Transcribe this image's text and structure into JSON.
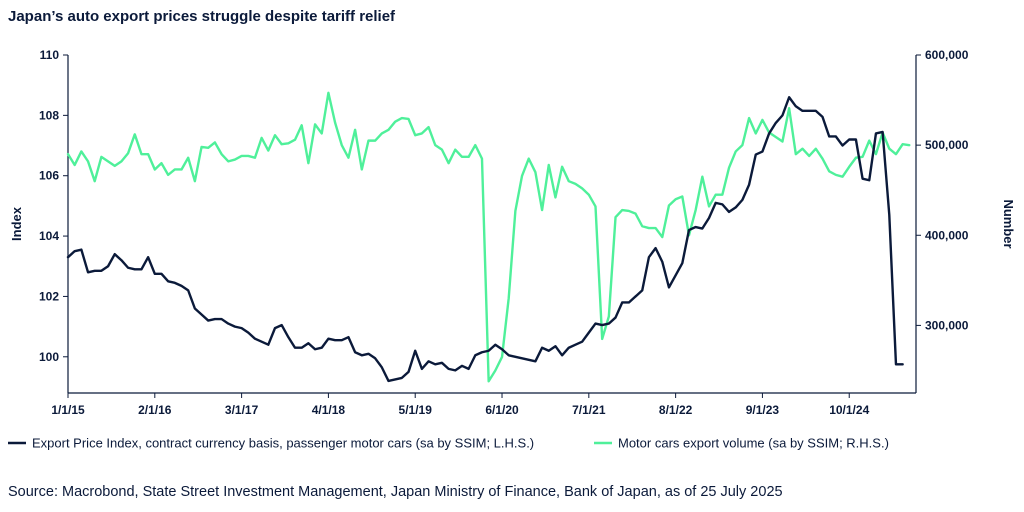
{
  "title": "Japan’s auto export prices struggle despite tariff relief",
  "source": "Source: Macrobond, State Street Investment Management, Japan Ministry of Finance, Bank of Japan, as of 25 July 2025",
  "colors": {
    "navy": "#0b1a3a",
    "green": "#4ff09a",
    "axis": "#0b1a3a"
  },
  "chart_data": {
    "type": "line",
    "x_tick_labels": [
      "1/1/15",
      "2/1/16",
      "3/1/17",
      "4/1/18",
      "5/1/19",
      "6/1/20",
      "7/1/21",
      "8/1/22",
      "9/1/23",
      "10/1/24"
    ],
    "x_tick_months": [
      0,
      13,
      26,
      39,
      52,
      65,
      78,
      91,
      104,
      117
    ],
    "x_range_months": [
      0,
      127
    ],
    "ylabel": "Index",
    "y2label": "Number",
    "ylim": [
      98.8,
      110
    ],
    "y_ticks": [
      100,
      102,
      104,
      106,
      108,
      110
    ],
    "y_tick_labels": [
      "100",
      "102",
      "104",
      "106",
      "108",
      "110"
    ],
    "y2lim": [
      225000,
      600000
    ],
    "y2_ticks": [
      300000,
      400000,
      500000,
      600000
    ],
    "y2_tick_labels": [
      "300,000",
      "400,000",
      "500,000",
      "600,000"
    ],
    "legend": [
      "Export Price Index, contract currency basis, passenger motor cars (sa by SSIM; L.H.S.)",
      "Motor cars export volume (sa by SSIM; R.H.S.)"
    ],
    "series": [
      {
        "name": "Export Price Index, contract currency basis, passenger motor cars (sa by SSIM; L.H.S.)",
        "axis": "left",
        "color": "#0b1a3a",
        "values": [
          103.3,
          103.5,
          103.55,
          102.8,
          102.85,
          102.85,
          103.0,
          103.4,
          103.2,
          102.95,
          102.9,
          102.9,
          103.3,
          102.75,
          102.75,
          102.5,
          102.45,
          102.35,
          102.2,
          101.6,
          101.4,
          101.2,
          101.25,
          101.25,
          101.1,
          101.0,
          100.95,
          100.8,
          100.6,
          100.5,
          100.4,
          100.95,
          101.05,
          100.65,
          100.3,
          100.3,
          100.45,
          100.25,
          100.3,
          100.6,
          100.55,
          100.55,
          100.65,
          100.15,
          100.05,
          100.1,
          99.95,
          99.65,
          99.2,
          99.25,
          99.3,
          99.5,
          100.2,
          99.6,
          99.85,
          99.75,
          99.8,
          99.6,
          99.55,
          99.7,
          99.6,
          100.05,
          100.15,
          100.2,
          100.4,
          100.25,
          100.05,
          100.0,
          99.95,
          99.9,
          99.85,
          100.3,
          100.2,
          100.35,
          100.05,
          100.3,
          100.4,
          100.5,
          100.8,
          101.1,
          101.05,
          101.1,
          101.3,
          101.8,
          101.8,
          102.0,
          102.2,
          103.3,
          103.6,
          103.15,
          102.3,
          102.7,
          103.1,
          104.2,
          104.3,
          104.25,
          104.6,
          105.1,
          105.05,
          104.8,
          104.95,
          105.2,
          105.7,
          106.7,
          106.8,
          107.4,
          107.75,
          108.0,
          108.6,
          108.3,
          108.15,
          108.15,
          108.15,
          107.95,
          107.3,
          107.3,
          107.0,
          107.2,
          107.2,
          105.9,
          105.85,
          107.4,
          107.45,
          104.7,
          99.75,
          99.75
        ]
      },
      {
        "name": "Motor cars export volume (sa by SSIM; R.H.S.)",
        "axis": "right",
        "color": "#4ff09a",
        "values": [
          490000,
          478000,
          493000,
          482000,
          460000,
          487000,
          482000,
          477000,
          482000,
          491000,
          512000,
          490000,
          490000,
          473000,
          480000,
          467000,
          473000,
          473000,
          486000,
          460000,
          498000,
          497000,
          503000,
          490000,
          482000,
          484000,
          488000,
          488000,
          486000,
          508000,
          494000,
          511000,
          501000,
          502000,
          506000,
          522000,
          480000,
          523000,
          513000,
          558000,
          525000,
          500000,
          486000,
          517000,
          473000,
          505000,
          505000,
          513000,
          517000,
          526000,
          530000,
          529000,
          511000,
          513000,
          520000,
          500000,
          495000,
          480000,
          495000,
          487000,
          487000,
          500000,
          485000,
          238000,
          250000,
          265000,
          330000,
          427000,
          466000,
          485000,
          470000,
          428000,
          478000,
          442000,
          476000,
          460000,
          457000,
          452000,
          445000,
          432000,
          285000,
          310000,
          420000,
          428000,
          427000,
          424000,
          410000,
          408000,
          408000,
          398000,
          433000,
          440000,
          443000,
          400000,
          428000,
          465000,
          432000,
          445000,
          445000,
          475000,
          493000,
          500000,
          530000,
          513000,
          528000,
          514000,
          509000,
          504000,
          541000,
          490000,
          496000,
          488000,
          496000,
          485000,
          471000,
          467000,
          465000,
          476000,
          486000,
          487000,
          505000,
          490000,
          514000,
          496000,
          490000,
          501000,
          500000
        ]
      }
    ]
  }
}
